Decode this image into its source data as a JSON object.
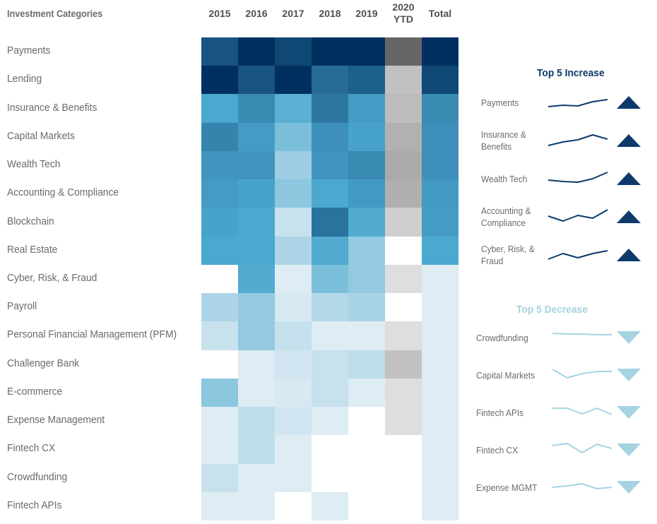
{
  "chart_data": {
    "type": "heatmap",
    "title": "Investment Categories",
    "row_header": "Investment Categories",
    "columns": [
      "2015",
      "2016",
      "2017",
      "2018",
      "2019",
      "2020 YTD",
      "Total"
    ],
    "column_header_lines": [
      [
        "2015"
      ],
      [
        "2016"
      ],
      [
        "2017"
      ],
      [
        "2018"
      ],
      [
        "2019"
      ],
      [
        "2020",
        "YTD"
      ],
      [
        "Total"
      ]
    ],
    "rows": [
      "Payments",
      "Lending",
      "Insurance & Benefits",
      "Capital Markets",
      "Wealth Tech",
      "Accounting & Compliance",
      "Blockchain",
      "Real Estate",
      "Cyber, Risk, & Fraud",
      "Payroll",
      "Personal Financial Management (PFM)",
      "Challenger Bank",
      "E-commerce",
      "Expense Management",
      "Fintech CX",
      "Crowdfunding",
      "Fintech APIs"
    ],
    "value_scale": "relative intensity 0 (none) to 1 (highest)",
    "grey_scale_columns": [
      "2020 YTD"
    ],
    "values": [
      [
        0.85,
        1.0,
        0.9,
        1.0,
        1.0,
        0.6,
        1.0
      ],
      [
        1.0,
        0.85,
        1.0,
        0.75,
        0.8,
        0.2,
        0.9
      ],
      [
        0.5,
        0.62,
        0.45,
        0.7,
        0.55,
        0.22,
        0.62
      ],
      [
        0.65,
        0.55,
        0.35,
        0.6,
        0.52,
        0.27,
        0.6
      ],
      [
        0.58,
        0.58,
        0.25,
        0.58,
        0.62,
        0.3,
        0.6
      ],
      [
        0.55,
        0.52,
        0.3,
        0.5,
        0.56,
        0.28,
        0.56
      ],
      [
        0.52,
        0.5,
        0.12,
        0.72,
        0.48,
        0.14,
        0.55
      ],
      [
        0.5,
        0.5,
        0.2,
        0.48,
        0.28,
        0.0,
        0.5
      ],
      [
        0.0,
        0.48,
        0.05,
        0.35,
        0.28,
        0.07,
        0.05
      ],
      [
        0.2,
        0.28,
        0.07,
        0.18,
        0.22,
        0.0,
        0.05
      ],
      [
        0.12,
        0.28,
        0.13,
        0.05,
        0.05,
        0.07,
        0.05
      ],
      [
        0.0,
        0.05,
        0.09,
        0.12,
        0.15,
        0.2,
        0.05
      ],
      [
        0.3,
        0.05,
        0.07,
        0.12,
        0.05,
        0.07,
        0.05
      ],
      [
        0.05,
        0.15,
        0.09,
        0.05,
        0.0,
        0.07,
        0.05
      ],
      [
        0.05,
        0.15,
        0.05,
        0.0,
        0.0,
        0.0,
        0.05
      ],
      [
        0.12,
        0.05,
        0.05,
        0.0,
        0.0,
        0.0,
        0.05
      ],
      [
        0.05,
        0.05,
        0.0,
        0.05,
        0.0,
        0.0,
        0.05
      ]
    ],
    "colors": {
      "blue_high": "#00305f",
      "blue_mid": "#4ba8cf",
      "blue_low": "#eef3f7",
      "grey_high": "#666666",
      "grey_low": "#eeeeee"
    }
  },
  "top_increase": {
    "title": "Top 5 Increase",
    "color": "#0d3a6b",
    "items": [
      {
        "label": [
          "Payments"
        ],
        "trend": [
          0.2,
          0.3,
          0.25,
          0.55,
          0.7
        ]
      },
      {
        "label": [
          "Insurance &",
          "Benefits"
        ],
        "trend": [
          0.15,
          0.4,
          0.55,
          0.9,
          0.6
        ]
      },
      {
        "label": [
          "Wealth Tech"
        ],
        "trend": [
          0.4,
          0.3,
          0.25,
          0.5,
          0.95
        ]
      },
      {
        "label": [
          "Accounting &",
          "Compliance"
        ],
        "trend": [
          0.55,
          0.2,
          0.6,
          0.4,
          1.0
        ]
      },
      {
        "label": [
          "Cyber, Risk, &",
          "Fraud"
        ],
        "trend": [
          0.2,
          0.6,
          0.3,
          0.6,
          0.8
        ]
      }
    ]
  },
  "top_decrease": {
    "title": "Top 5 Decrease",
    "color": "#a6d3e2",
    "items": [
      {
        "label": [
          "Crowdfunding"
        ],
        "trend": [
          0.8,
          0.75,
          0.75,
          0.7,
          0.7
        ]
      },
      {
        "label": [
          "Capital Markets"
        ],
        "trend": [
          0.9,
          0.3,
          0.6,
          0.75,
          0.75
        ]
      },
      {
        "label": [
          "Fintech APIs"
        ],
        "trend": [
          0.8,
          0.8,
          0.4,
          0.8,
          0.35
        ]
      },
      {
        "label": [
          "Fintech CX"
        ],
        "trend": [
          0.8,
          0.95,
          0.3,
          0.9,
          0.6
        ]
      },
      {
        "label": [
          "Expense MGMT"
        ],
        "trend": [
          0.5,
          0.6,
          0.75,
          0.4,
          0.5
        ]
      }
    ]
  }
}
